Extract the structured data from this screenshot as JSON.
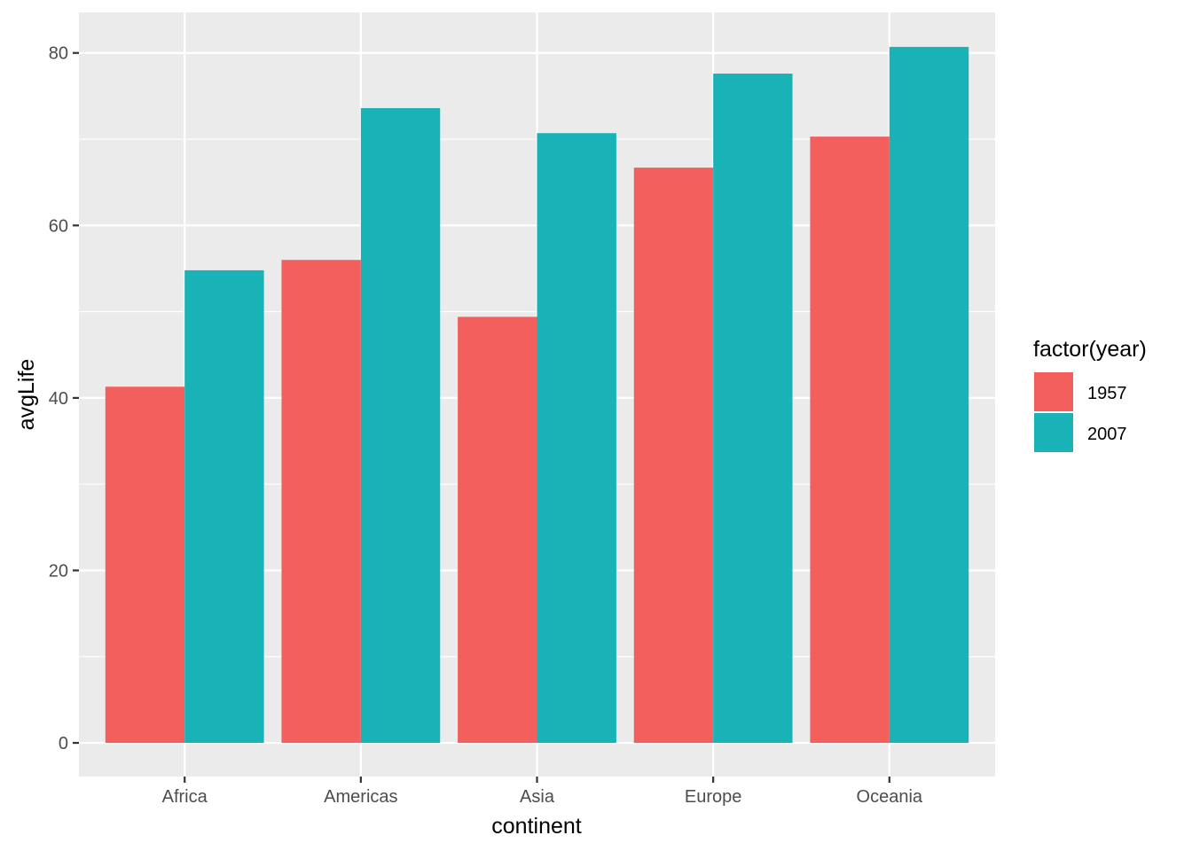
{
  "chart_data": {
    "type": "bar",
    "xlabel": "continent",
    "ylabel": "avgLife",
    "categories": [
      "Africa",
      "Americas",
      "Asia",
      "Europe",
      "Oceania"
    ],
    "series": [
      {
        "name": "1957",
        "values": [
          41.3,
          56.0,
          49.4,
          66.7,
          70.3
        ],
        "color": "#F25F5C"
      },
      {
        "name": "2007",
        "values": [
          54.8,
          73.6,
          70.7,
          77.6,
          80.7
        ],
        "color": "#19B2B6"
      }
    ],
    "ylim": [
      -3.9,
      84.7
    ],
    "y_ticks": [
      0,
      20,
      40,
      60,
      80
    ],
    "y_tick_labels": [
      "0",
      "20",
      "40",
      "60",
      "80"
    ],
    "grid": true,
    "legend": {
      "title": "factor(year)",
      "position": "right"
    },
    "colors": {
      "panel_background": "#EBEBEB",
      "grid": "#FFFFFF",
      "text": "#4D4D4D"
    }
  }
}
